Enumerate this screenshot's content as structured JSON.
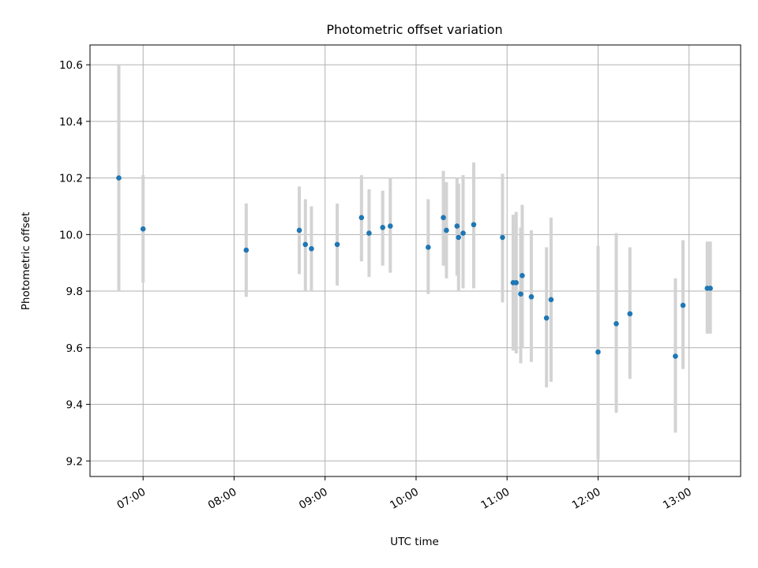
{
  "chart_data": {
    "type": "scatter",
    "title": "Photometric offset variation",
    "xlabel": "UTC time",
    "ylabel": "Photometric offset",
    "x_tick_labels": [
      "07:00",
      "08:00",
      "09:00",
      "10:00",
      "11:00",
      "12:00",
      "13:00"
    ],
    "y_tick_labels": [
      "9.2",
      "9.4",
      "9.6",
      "9.8",
      "10.0",
      "10.2",
      "10.4",
      "10.6"
    ],
    "xlim": [
      "06:25",
      "13:34"
    ],
    "ylim": [
      9.145,
      10.67
    ],
    "grid": true,
    "point_color": "#1f77b4",
    "errorbar_color": "#d3d3d3",
    "points": [
      {
        "x": "06:44",
        "y": 10.2,
        "err_low": 9.8,
        "err_high": 10.6
      },
      {
        "x": "07:00",
        "y": 10.02,
        "err_low": 9.83,
        "err_high": 10.21
      },
      {
        "x": "08:08",
        "y": 9.945,
        "err_low": 9.78,
        "err_high": 10.11
      },
      {
        "x": "08:43",
        "y": 10.015,
        "err_low": 9.86,
        "err_high": 10.17
      },
      {
        "x": "08:47",
        "y": 9.965,
        "err_low": 9.8,
        "err_high": 10.125
      },
      {
        "x": "08:51",
        "y": 9.95,
        "err_low": 9.8,
        "err_high": 10.1
      },
      {
        "x": "09:08",
        "y": 9.965,
        "err_low": 9.82,
        "err_high": 10.11
      },
      {
        "x": "09:24",
        "y": 10.06,
        "err_low": 9.905,
        "err_high": 10.21
      },
      {
        "x": "09:29",
        "y": 10.005,
        "err_low": 9.85,
        "err_high": 10.16
      },
      {
        "x": "09:38",
        "y": 10.025,
        "err_low": 9.89,
        "err_high": 10.155
      },
      {
        "x": "09:43",
        "y": 10.03,
        "err_low": 9.865,
        "err_high": 10.2
      },
      {
        "x": "10:08",
        "y": 9.955,
        "err_low": 9.79,
        "err_high": 10.125
      },
      {
        "x": "10:18",
        "y": 10.06,
        "err_low": 9.89,
        "err_high": 10.225
      },
      {
        "x": "10:20",
        "y": 10.015,
        "err_low": 9.845,
        "err_high": 10.185
      },
      {
        "x": "10:27",
        "y": 10.03,
        "err_low": 9.855,
        "err_high": 10.2
      },
      {
        "x": "10:28",
        "y": 9.99,
        "err_low": 9.8,
        "err_high": 10.18
      },
      {
        "x": "10:31",
        "y": 10.005,
        "err_low": 9.81,
        "err_high": 10.21
      },
      {
        "x": "10:38",
        "y": 10.035,
        "err_low": 9.81,
        "err_high": 10.255
      },
      {
        "x": "10:57",
        "y": 9.99,
        "err_low": 9.76,
        "err_high": 10.215
      },
      {
        "x": "11:04",
        "y": 9.83,
        "err_low": 9.59,
        "err_high": 10.07
      },
      {
        "x": "11:06",
        "y": 9.83,
        "err_low": 9.58,
        "err_high": 10.08
      },
      {
        "x": "11:09",
        "y": 9.79,
        "err_low": 9.545,
        "err_high": 10.025
      },
      {
        "x": "11:10",
        "y": 9.855,
        "err_low": 9.6,
        "err_high": 10.105
      },
      {
        "x": "11:16",
        "y": 9.78,
        "err_low": 9.55,
        "err_high": 10.015
      },
      {
        "x": "11:26",
        "y": 9.705,
        "err_low": 9.46,
        "err_high": 9.955
      },
      {
        "x": "11:29",
        "y": 9.77,
        "err_low": 9.48,
        "err_high": 10.06
      },
      {
        "x": "12:00",
        "y": 9.585,
        "err_low": 9.205,
        "err_high": 9.96
      },
      {
        "x": "12:12",
        "y": 9.685,
        "err_low": 9.37,
        "err_high": 10.005
      },
      {
        "x": "12:21",
        "y": 9.72,
        "err_low": 9.49,
        "err_high": 9.955
      },
      {
        "x": "12:51",
        "y": 9.57,
        "err_low": 9.3,
        "err_high": 9.845
      },
      {
        "x": "12:56",
        "y": 9.75,
        "err_low": 9.525,
        "err_high": 9.98
      },
      {
        "x": "13:12",
        "y": 9.81,
        "err_low": 9.65,
        "err_high": 9.975
      },
      {
        "x": "13:14",
        "y": 9.81,
        "err_low": 9.65,
        "err_high": 9.975
      }
    ]
  }
}
